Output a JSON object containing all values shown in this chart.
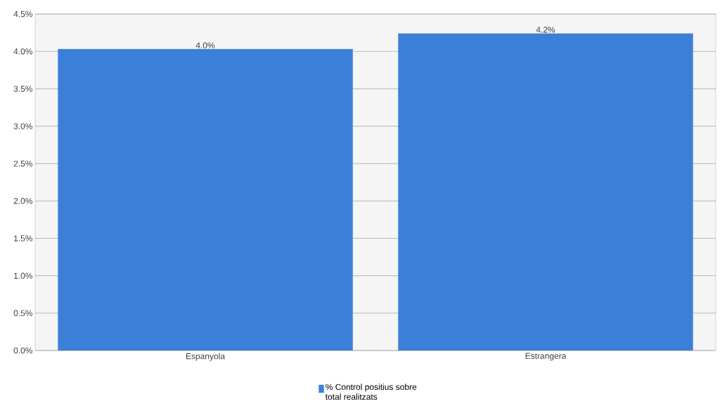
{
  "chart_data": {
    "type": "bar",
    "categories": [
      "Espanyola",
      "Estrangera"
    ],
    "series": [
      {
        "name": "% Control positius sobre total realitzats",
        "color": "#3b7fd9",
        "values": [
          4.03,
          4.24
        ],
        "value_labels": [
          "4.0%",
          "4.2%"
        ]
      }
    ],
    "ylim": [
      0,
      4.5
    ],
    "yticks": [
      {
        "value": 0,
        "label": "0.0%"
      },
      {
        "value": 0.5,
        "label": "0.5%"
      },
      {
        "value": 1,
        "label": "1.0%"
      },
      {
        "value": 1.5,
        "label": "1.5%"
      },
      {
        "value": 2,
        "label": "2.0%"
      },
      {
        "value": 2.5,
        "label": "2.5%"
      },
      {
        "value": 3,
        "label": "3.0%"
      },
      {
        "value": 3.5,
        "label": "3.5%"
      },
      {
        "value": 4,
        "label": "4.0%"
      },
      {
        "value": 4.5,
        "label": "4.5%"
      }
    ],
    "grid": "y",
    "legend": "bottom"
  }
}
